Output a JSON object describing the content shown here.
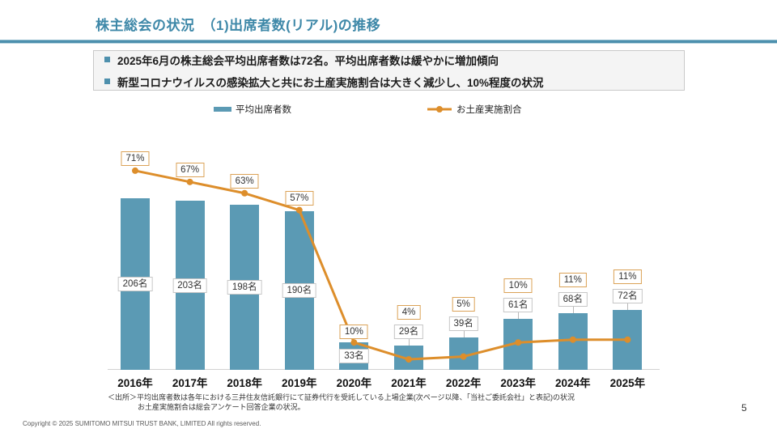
{
  "slide": {
    "title": "株主総会の状況　（1)出席者数(リアル)の推移",
    "page_number": "5",
    "copyright": "Copyright © 2025 SUMITOMO MITSUI TRUST BANK, LIMITED All rights reserved."
  },
  "highlights": {
    "items": [
      {
        "text": "2025年6月の株主総会平均出席者数は72名。平均出席者数は緩やかに増加傾向"
      },
      {
        "text": "新型コロナウイルスの感染拡大と共にお土産実施割合は大きく減少し、10%程度の状況"
      }
    ]
  },
  "source_note": {
    "line1": "＜出所＞平均出席者数は各年における三井住友信託銀行にて証券代行を受託している上場企業(次ページ以降、「当社ご委託会社」と表記)の状況",
    "line2": "お土産実施割合は総会アンケート回答企業の状況。"
  },
  "chart_data": {
    "type": "bar",
    "title": "",
    "categories": [
      "2016年",
      "2017年",
      "2018年",
      "2019年",
      "2020年",
      "2021年",
      "2022年",
      "2023年",
      "2024年",
      "2025年"
    ],
    "series": [
      {
        "name": "平均出席者数",
        "chart_type": "bar",
        "unit": "名",
        "color": "#5b9ab4",
        "values": [
          206,
          203,
          198,
          190,
          33,
          29,
          39,
          61,
          68,
          72
        ],
        "data_labels": [
          "206名",
          "203名",
          "198名",
          "190名",
          "33名",
          "29名",
          "39名",
          "61名",
          "68名",
          "72名"
        ]
      },
      {
        "name": "お土産実施割合",
        "chart_type": "line",
        "unit": "%",
        "color": "#dd8e2b",
        "values": [
          71,
          67,
          63,
          57,
          10,
          4,
          5,
          10,
          11,
          11
        ],
        "data_labels": [
          "71%",
          "67%",
          "63%",
          "57%",
          "10%",
          "4%",
          "5%",
          "10%",
          "11%",
          "11%"
        ]
      }
    ],
    "legend_position": "top",
    "grid": false,
    "y_axis_visible": false,
    "bar_ylim": [
      0,
      240
    ],
    "line_ylim": [
      0,
      100
    ]
  }
}
